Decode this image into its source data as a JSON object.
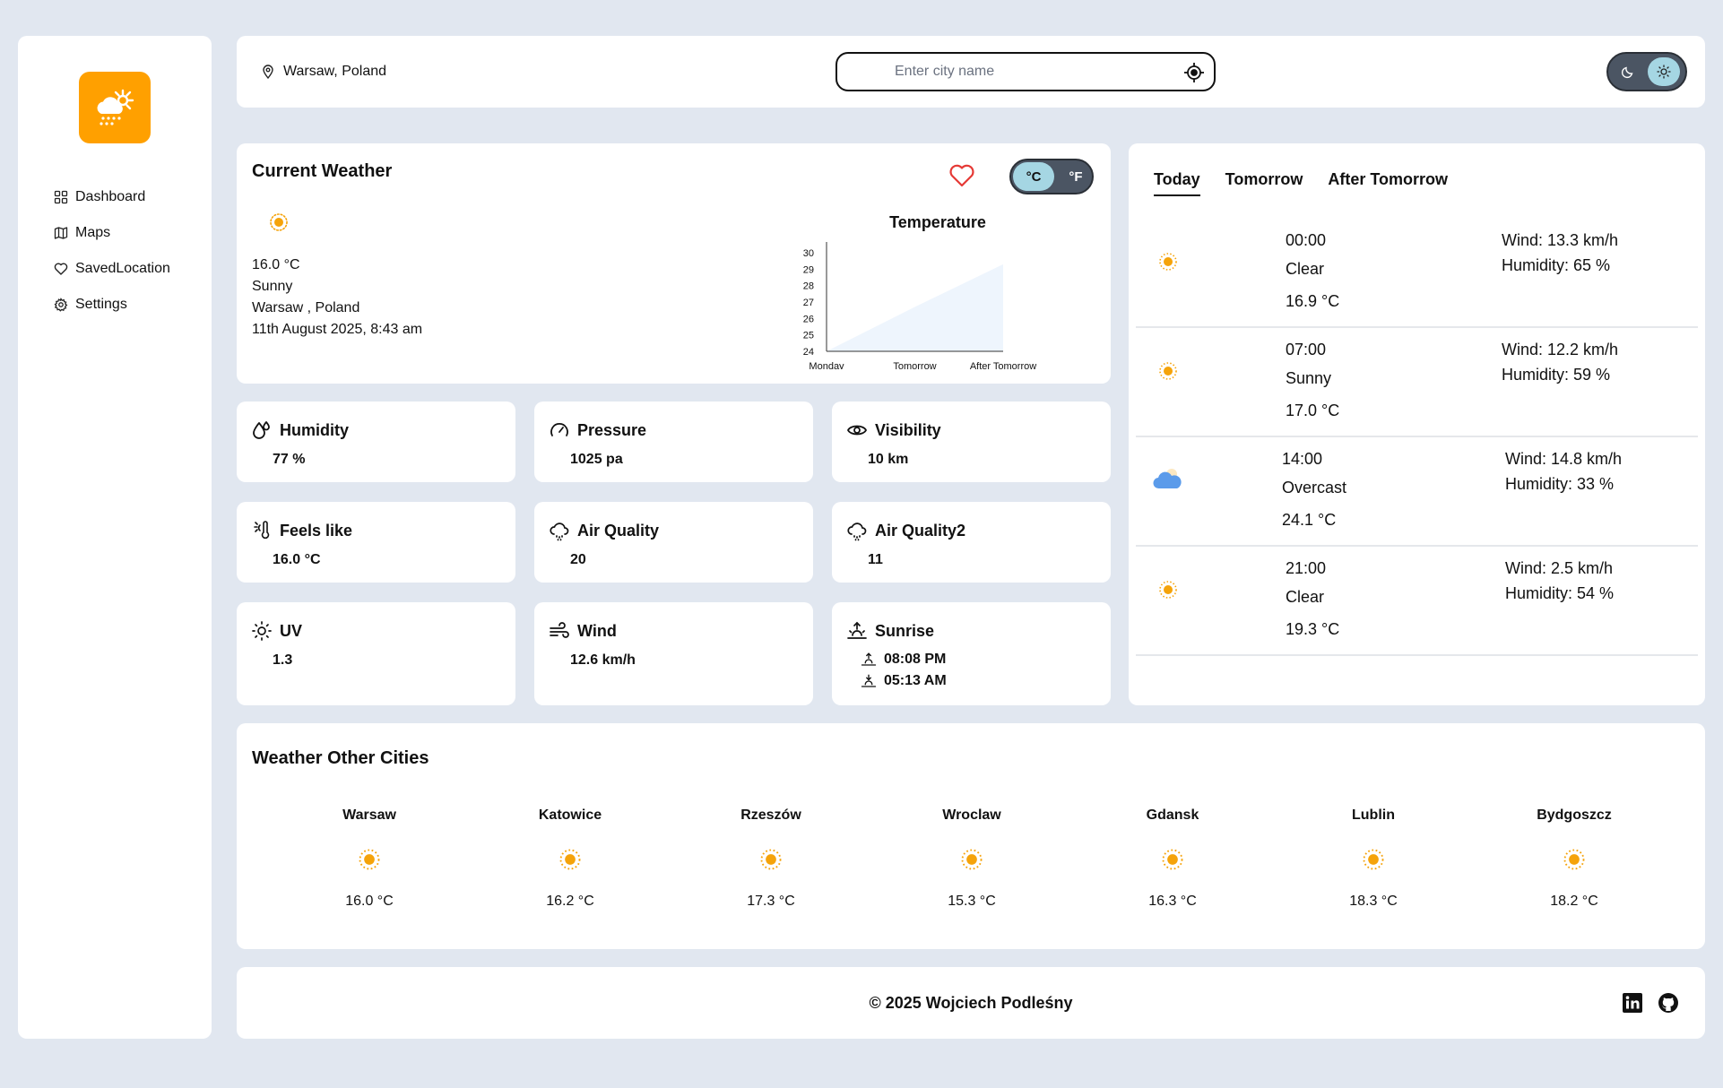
{
  "sidebar": {
    "items": [
      {
        "label": "Dashboard",
        "icon": "dashboard-icon"
      },
      {
        "label": "Maps",
        "icon": "map-icon"
      },
      {
        "label": "SavedLocation",
        "icon": "heart-icon"
      },
      {
        "label": "Settings",
        "icon": "gear-icon"
      }
    ]
  },
  "header": {
    "location": "Warsaw, Poland",
    "search_placeholder": "Enter city name"
  },
  "current": {
    "title": "Current Weather",
    "temp": "16.0 °C",
    "condition": "Sunny",
    "place": "Warsaw , Poland",
    "datetime": "11th August 2025, 8:43 am",
    "unit_c": "°C",
    "unit_f": "°F"
  },
  "chart_data": {
    "type": "area",
    "title": "Temperature",
    "categories": [
      "Monday",
      "Tomorrow",
      "After Tomorrow"
    ],
    "values": [
      24,
      26.7,
      29.3
    ],
    "yticks": [
      30,
      29,
      28,
      27,
      26,
      25,
      24
    ],
    "ylim": [
      24,
      30
    ],
    "color": "#eef5fd"
  },
  "stats": {
    "humidity": {
      "label": "Humidity",
      "value": "77 %"
    },
    "pressure": {
      "label": "Pressure",
      "value": "1025 pa"
    },
    "visibility": {
      "label": "Visibility",
      "value": "10 km"
    },
    "feels": {
      "label": "Feels like",
      "value": "16.0 °C"
    },
    "aq1": {
      "label": "Air Quality",
      "value": "20"
    },
    "aq2": {
      "label": "Air Quality2",
      "value": "11"
    },
    "uv": {
      "label": "UV",
      "value": "1.3"
    },
    "wind": {
      "label": "Wind",
      "value": "12.6 km/h"
    },
    "sunrise": {
      "label": "Sunrise",
      "sunrise": "08:08 PM",
      "sunset": "05:13 AM"
    }
  },
  "forecast": {
    "tabs": [
      "Today",
      "Tomorrow",
      "After Tomorrow"
    ],
    "rows": [
      {
        "time": "00:00",
        "cond": "Clear",
        "temp": "16.9 °C",
        "wind": "Wind: 13.3 km/h",
        "hum": "Humidity: 65 %",
        "icon": "sun-icon"
      },
      {
        "time": "07:00",
        "cond": "Sunny",
        "temp": "17.0 °C",
        "wind": "Wind: 12.2 km/h",
        "hum": "Humidity: 59 %",
        "icon": "sun-icon"
      },
      {
        "time": "14:00",
        "cond": "Overcast",
        "temp": "24.1 °C",
        "wind": "Wind: 14.8 km/h",
        "hum": "Humidity: 33 %",
        "icon": "cloud-icon"
      },
      {
        "time": "21:00",
        "cond": "Clear",
        "temp": "19.3 °C",
        "wind": "Wind: 2.5 km/h",
        "hum": "Humidity: 54 %",
        "icon": "sun-icon"
      }
    ]
  },
  "cities": {
    "title": "Weather Other Cities",
    "list": [
      {
        "name": "Warsaw",
        "temp": "16.0 °C"
      },
      {
        "name": "Katowice",
        "temp": "16.2 °C"
      },
      {
        "name": "Rzeszów",
        "temp": "17.3 °C"
      },
      {
        "name": "Wroclaw",
        "temp": "15.3 °C"
      },
      {
        "name": "Gdansk",
        "temp": "16.3 °C"
      },
      {
        "name": "Lublin",
        "temp": "18.3 °C"
      },
      {
        "name": "Bydgoszcz",
        "temp": "18.2 °C"
      }
    ]
  },
  "footer": {
    "copyright": "© 2025 Wojciech Podleśny"
  },
  "colors": {
    "accent": "#ffa000",
    "toggle_active": "#a5d6e3",
    "sun": "#f5a30a",
    "cloud": "#5b9bea"
  }
}
